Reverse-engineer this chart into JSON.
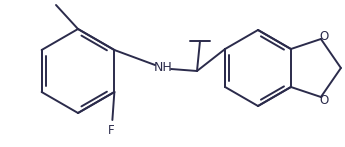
{
  "bg_color": "#ffffff",
  "line_color": "#2b2b4b",
  "line_width": 1.4,
  "font_size": 8.5,
  "figsize": [
    3.45,
    1.47
  ],
  "dpi": 100,
  "xlim": [
    0,
    345
  ],
  "ylim": [
    0,
    147
  ]
}
